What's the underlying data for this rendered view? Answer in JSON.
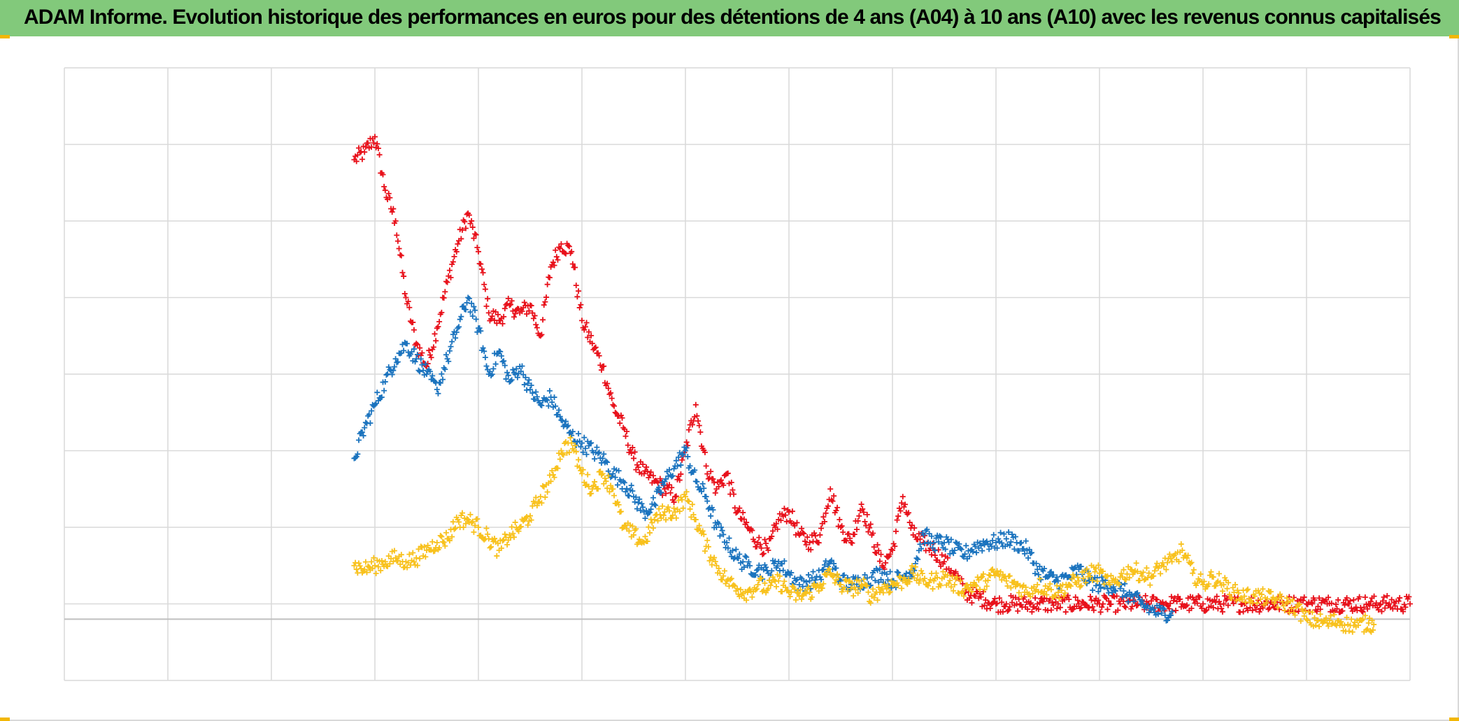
{
  "title": "ADAM Informe. Evolution historique des performances en euros pour des détentions de 4 ans (A04) à 10 ans (A10) avec les revenus connus capitalisés",
  "colors": {
    "title_bg": "#82c97b",
    "corner_marks": "#f2b705",
    "grid": "#d9d9d9",
    "zero_line": "#bfbfbf"
  },
  "chart_data": {
    "type": "scatter",
    "marker": "plus",
    "title": "ADAM Informe. Evolution historique des performances en euros pour des détentions de 4 ans (A04) à 10 ans (A10) avec les revenus connus capitalisés",
    "xlabel": "",
    "ylabel": "",
    "tick_labels_visible": false,
    "xlim": [
      0,
      13
    ],
    "ylim": [
      -0.8,
      7.2
    ],
    "x_gridlines": 13,
    "y_gridlines": 8,
    "grid": true,
    "zero_line_at": 0,
    "series": [
      {
        "color": "#e8101a",
        "points": [
          [
            2.8,
            6.0
          ],
          [
            2.9,
            6.1
          ],
          [
            3.0,
            6.3
          ],
          [
            3.1,
            5.6
          ],
          [
            3.2,
            5.2
          ],
          [
            3.3,
            4.2
          ],
          [
            3.4,
            3.6
          ],
          [
            3.5,
            3.3
          ],
          [
            3.6,
            3.8
          ],
          [
            3.7,
            4.4
          ],
          [
            3.8,
            4.9
          ],
          [
            3.9,
            5.3
          ],
          [
            4.0,
            4.8
          ],
          [
            4.1,
            4.0
          ],
          [
            4.2,
            3.9
          ],
          [
            4.3,
            4.1
          ],
          [
            4.4,
            4.0
          ],
          [
            4.5,
            4.1
          ],
          [
            4.6,
            3.7
          ],
          [
            4.7,
            4.6
          ],
          [
            4.8,
            4.9
          ],
          [
            4.9,
            4.8
          ],
          [
            5.0,
            3.9
          ],
          [
            5.1,
            3.6
          ],
          [
            5.2,
            3.3
          ],
          [
            5.3,
            2.8
          ],
          [
            5.4,
            2.5
          ],
          [
            5.5,
            2.1
          ],
          [
            5.6,
            1.9
          ],
          [
            5.7,
            1.8
          ],
          [
            5.8,
            1.7
          ],
          [
            5.9,
            1.6
          ],
          [
            6.0,
            2.2
          ],
          [
            6.1,
            2.8
          ],
          [
            6.2,
            2.0
          ],
          [
            6.3,
            1.7
          ],
          [
            6.4,
            1.9
          ],
          [
            6.5,
            1.4
          ],
          [
            6.6,
            1.2
          ],
          [
            6.7,
            1.0
          ],
          [
            6.8,
            0.9
          ],
          [
            6.9,
            1.3
          ],
          [
            7.0,
            1.4
          ],
          [
            7.1,
            1.1
          ],
          [
            7.2,
            1.0
          ],
          [
            7.3,
            1.1
          ],
          [
            7.4,
            1.7
          ],
          [
            7.5,
            1.2
          ],
          [
            7.6,
            1.0
          ],
          [
            7.7,
            1.5
          ],
          [
            7.8,
            1.1
          ],
          [
            7.9,
            0.7
          ],
          [
            8.0,
            0.9
          ],
          [
            8.1,
            1.6
          ],
          [
            8.2,
            1.1
          ],
          [
            8.3,
            1.0
          ],
          [
            8.4,
            0.9
          ],
          [
            8.5,
            0.75
          ],
          [
            8.6,
            0.6
          ],
          [
            8.7,
            0.35
          ],
          [
            8.8,
            0.3
          ],
          [
            8.9,
            0.25
          ],
          [
            9.0,
            0.2
          ],
          [
            9.1,
            0.2
          ],
          [
            9.2,
            0.2
          ],
          [
            9.4,
            0.2
          ],
          [
            9.6,
            0.2
          ],
          [
            9.8,
            0.2
          ],
          [
            10.0,
            0.2
          ],
          [
            10.2,
            0.2
          ],
          [
            10.4,
            0.2
          ],
          [
            10.6,
            0.2
          ],
          [
            10.8,
            0.2
          ],
          [
            11.0,
            0.2
          ],
          [
            11.2,
            0.2
          ],
          [
            11.4,
            0.2
          ],
          [
            11.6,
            0.2
          ],
          [
            11.8,
            0.2
          ],
          [
            12.0,
            0.2
          ],
          [
            12.2,
            0.2
          ],
          [
            12.4,
            0.2
          ],
          [
            12.6,
            0.2
          ],
          [
            12.8,
            0.2
          ],
          [
            13.0,
            0.2
          ]
        ]
      },
      {
        "color": "#1a73be",
        "points": [
          [
            2.8,
            2.1
          ],
          [
            2.9,
            2.5
          ],
          [
            3.0,
            2.8
          ],
          [
            3.1,
            3.1
          ],
          [
            3.2,
            3.4
          ],
          [
            3.3,
            3.6
          ],
          [
            3.4,
            3.4
          ],
          [
            3.5,
            3.2
          ],
          [
            3.6,
            3.0
          ],
          [
            3.7,
            3.4
          ],
          [
            3.8,
            3.8
          ],
          [
            3.9,
            4.2
          ],
          [
            4.0,
            3.8
          ],
          [
            4.1,
            3.2
          ],
          [
            4.2,
            3.5
          ],
          [
            4.3,
            3.1
          ],
          [
            4.4,
            3.3
          ],
          [
            4.5,
            3.0
          ],
          [
            4.6,
            2.8
          ],
          [
            4.7,
            2.9
          ],
          [
            4.8,
            2.6
          ],
          [
            4.9,
            2.4
          ],
          [
            5.0,
            2.3
          ],
          [
            5.1,
            2.2
          ],
          [
            5.2,
            2.1
          ],
          [
            5.3,
            1.9
          ],
          [
            5.4,
            1.8
          ],
          [
            5.5,
            1.6
          ],
          [
            5.6,
            1.4
          ],
          [
            5.7,
            1.5
          ],
          [
            5.8,
            1.8
          ],
          [
            5.9,
            2.0
          ],
          [
            6.0,
            2.2
          ],
          [
            6.1,
            1.8
          ],
          [
            6.2,
            1.6
          ],
          [
            6.3,
            1.2
          ],
          [
            6.4,
            1.0
          ],
          [
            6.5,
            0.8
          ],
          [
            6.6,
            0.7
          ],
          [
            6.7,
            0.65
          ],
          [
            6.8,
            0.6
          ],
          [
            6.9,
            0.75
          ],
          [
            7.0,
            0.6
          ],
          [
            7.1,
            0.45
          ],
          [
            7.2,
            0.5
          ],
          [
            7.3,
            0.55
          ],
          [
            7.4,
            0.75
          ],
          [
            7.5,
            0.5
          ],
          [
            7.6,
            0.45
          ],
          [
            7.7,
            0.5
          ],
          [
            7.8,
            0.55
          ],
          [
            7.9,
            0.6
          ],
          [
            8.0,
            0.5
          ],
          [
            8.1,
            0.55
          ],
          [
            8.2,
            0.65
          ],
          [
            8.3,
            1.1
          ],
          [
            8.4,
            1.0
          ],
          [
            8.5,
            1.0
          ],
          [
            8.6,
            0.9
          ],
          [
            8.7,
            0.85
          ],
          [
            8.8,
            0.95
          ],
          [
            8.9,
            1.0
          ],
          [
            9.0,
            1.0
          ],
          [
            9.1,
            1.05
          ],
          [
            9.2,
            1.0
          ],
          [
            9.3,
            0.9
          ],
          [
            9.4,
            0.65
          ],
          [
            9.5,
            0.55
          ],
          [
            9.6,
            0.5
          ],
          [
            9.7,
            0.55
          ],
          [
            9.8,
            0.65
          ],
          [
            9.9,
            0.5
          ],
          [
            10.0,
            0.45
          ],
          [
            10.1,
            0.45
          ],
          [
            10.2,
            0.4
          ],
          [
            10.3,
            0.3
          ],
          [
            10.4,
            0.2
          ],
          [
            10.5,
            0.12
          ],
          [
            10.6,
            0.08
          ],
          [
            10.7,
            0.1
          ]
        ]
      },
      {
        "color": "#f8c11c",
        "points": [
          [
            2.8,
            0.7
          ],
          [
            2.9,
            0.65
          ],
          [
            3.0,
            0.7
          ],
          [
            3.1,
            0.75
          ],
          [
            3.2,
            0.8
          ],
          [
            3.3,
            0.75
          ],
          [
            3.4,
            0.8
          ],
          [
            3.5,
            0.9
          ],
          [
            3.6,
            1.0
          ],
          [
            3.7,
            1.05
          ],
          [
            3.8,
            1.3
          ],
          [
            3.9,
            1.3
          ],
          [
            4.0,
            1.2
          ],
          [
            4.1,
            1.05
          ],
          [
            4.2,
            0.9
          ],
          [
            4.3,
            1.1
          ],
          [
            4.4,
            1.2
          ],
          [
            4.5,
            1.35
          ],
          [
            4.6,
            1.6
          ],
          [
            4.7,
            1.8
          ],
          [
            4.8,
            2.2
          ],
          [
            4.9,
            2.3
          ],
          [
            5.0,
            1.9
          ],
          [
            5.1,
            1.7
          ],
          [
            5.2,
            1.9
          ],
          [
            5.3,
            1.7
          ],
          [
            5.4,
            1.2
          ],
          [
            5.5,
            1.1
          ],
          [
            5.6,
            1.0
          ],
          [
            5.7,
            1.3
          ],
          [
            5.8,
            1.4
          ],
          [
            5.9,
            1.4
          ],
          [
            6.0,
            1.6
          ],
          [
            6.1,
            1.3
          ],
          [
            6.2,
            0.95
          ],
          [
            6.3,
            0.7
          ],
          [
            6.4,
            0.5
          ],
          [
            6.5,
            0.4
          ],
          [
            6.6,
            0.35
          ],
          [
            6.7,
            0.45
          ],
          [
            6.8,
            0.4
          ],
          [
            6.9,
            0.5
          ],
          [
            7.0,
            0.35
          ],
          [
            7.1,
            0.3
          ],
          [
            7.2,
            0.35
          ],
          [
            7.3,
            0.45
          ],
          [
            7.4,
            0.6
          ],
          [
            7.5,
            0.45
          ],
          [
            7.6,
            0.4
          ],
          [
            7.7,
            0.45
          ],
          [
            7.8,
            0.3
          ],
          [
            7.9,
            0.4
          ],
          [
            8.0,
            0.45
          ],
          [
            8.1,
            0.5
          ],
          [
            8.2,
            0.6
          ],
          [
            8.3,
            0.5
          ],
          [
            8.4,
            0.5
          ],
          [
            8.5,
            0.55
          ],
          [
            8.6,
            0.45
          ],
          [
            8.7,
            0.4
          ],
          [
            8.8,
            0.45
          ],
          [
            8.9,
            0.5
          ],
          [
            9.0,
            0.6
          ],
          [
            9.1,
            0.5
          ],
          [
            9.2,
            0.45
          ],
          [
            9.3,
            0.35
          ],
          [
            9.4,
            0.45
          ],
          [
            9.5,
            0.4
          ],
          [
            9.6,
            0.35
          ],
          [
            9.7,
            0.45
          ],
          [
            9.8,
            0.5
          ],
          [
            9.9,
            0.6
          ],
          [
            10.0,
            0.6
          ],
          [
            10.1,
            0.45
          ],
          [
            10.2,
            0.55
          ],
          [
            10.3,
            0.65
          ],
          [
            10.4,
            0.6
          ],
          [
            10.5,
            0.55
          ],
          [
            10.6,
            0.7
          ],
          [
            10.7,
            0.75
          ],
          [
            10.8,
            0.9
          ],
          [
            10.9,
            0.6
          ],
          [
            11.0,
            0.45
          ],
          [
            11.1,
            0.55
          ],
          [
            11.2,
            0.45
          ],
          [
            11.3,
            0.35
          ],
          [
            11.4,
            0.3
          ],
          [
            11.5,
            0.3
          ],
          [
            11.6,
            0.28
          ],
          [
            11.7,
            0.25
          ],
          [
            11.8,
            0.2
          ],
          [
            11.9,
            0.15
          ],
          [
            12.0,
            0.0
          ],
          [
            12.1,
            -0.02
          ],
          [
            12.2,
            -0.05
          ],
          [
            12.3,
            -0.02
          ],
          [
            12.4,
            -0.07
          ],
          [
            12.5,
            -0.08
          ],
          [
            12.6,
            -0.05
          ],
          [
            12.65,
            -0.07
          ]
        ]
      }
    ]
  }
}
